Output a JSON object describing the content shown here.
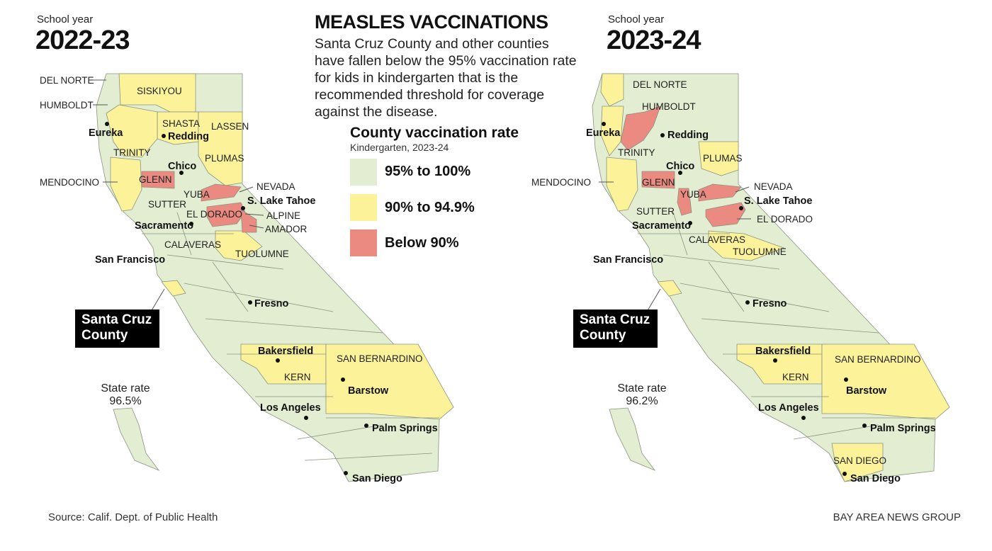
{
  "title": "MEASLES VACCINATIONS",
  "description": "Santa Cruz County and other counties have fallen below the 95% vaccination rate for kids in kindergarten that is the recommended threshold for coverage against the disease.",
  "legend": {
    "title": "County vaccination rate",
    "subtitle": "Kindergarten, 2023-24",
    "items": [
      {
        "label": "95% to 100%",
        "color": "#e3edd2"
      },
      {
        "label": "90% to 94.9%",
        "color": "#fbf29a"
      },
      {
        "label": "Below 90%",
        "color": "#ea8a80"
      }
    ]
  },
  "colors": {
    "high": "#e3edd2",
    "mid": "#fbf29a",
    "low": "#ea8a80",
    "border": "#8a9380",
    "callout": "#000000"
  },
  "maps": [
    {
      "school_year_label": "School year",
      "year": "2022-23",
      "state_rate_label": "State rate",
      "state_rate": "96.5%",
      "callout": "Santa Cruz County",
      "mid_counties": [
        "SISKIYOU",
        "SHASTA",
        "LASSEN",
        "TRINITY",
        "PLUMAS",
        "MENDOCINO",
        "TUOLUMNE",
        "KERN",
        "SAN BERNARDINO",
        "Santa Cruz County"
      ],
      "low_counties": [
        "GLENN",
        "NEVADA",
        "EL DORADO",
        "AMADOR"
      ],
      "county_labels": [
        "DEL NORTE",
        "HUMBOLDT",
        "SISKIYOU",
        "SHASTA",
        "LASSEN",
        "TRINITY",
        "PLUMAS",
        "MENDOCINO",
        "GLENN",
        "NEVADA",
        "YUBA",
        "SUTTER",
        "EL DORADO",
        "ALPINE",
        "AMADOR",
        "CALAVERAS",
        "TUOLUMNE",
        "KERN",
        "SAN BERNARDINO"
      ],
      "cities": [
        "Eureka",
        "Redding",
        "Chico",
        "S. Lake Tahoe",
        "Sacramento",
        "San Francisco",
        "Fresno",
        "Bakersfield",
        "Barstow",
        "Los Angeles",
        "Palm Springs",
        "San Diego"
      ]
    },
    {
      "school_year_label": "School year",
      "year": "2023-24",
      "state_rate_label": "State rate",
      "state_rate": "96.2%",
      "callout": "Santa Cruz County",
      "mid_counties": [
        "DEL NORTE",
        "TRINITY",
        "PLUMAS",
        "MENDOCINO",
        "CALAVERAS",
        "TUOLUMNE",
        "KERN",
        "SAN BERNARDINO",
        "SAN DIEGO",
        "Santa Cruz County"
      ],
      "low_counties": [
        "HUMBOLDT",
        "GLENN",
        "YUBA",
        "NEVADA",
        "EL DORADO"
      ],
      "county_labels": [
        "DEL NORTE",
        "HUMBOLDT",
        "TRINITY",
        "PLUMAS",
        "MENDOCINO",
        "GLENN",
        "YUBA",
        "NEVADA",
        "SUTTER",
        "EL DORADO",
        "CALAVERAS",
        "TUOLUMNE",
        "KERN",
        "SAN BERNARDINO",
        "SAN DIEGO"
      ],
      "cities": [
        "Eureka",
        "Redding",
        "Chico",
        "S. Lake Tahoe",
        "Sacramento",
        "San Francisco",
        "Fresno",
        "Bakersfield",
        "Barstow",
        "Los Angeles",
        "Palm Springs",
        "San Diego"
      ]
    }
  ],
  "footer": {
    "source": "Source: Calif. Dept. of Public Health",
    "credit": "BAY AREA NEWS GROUP"
  }
}
